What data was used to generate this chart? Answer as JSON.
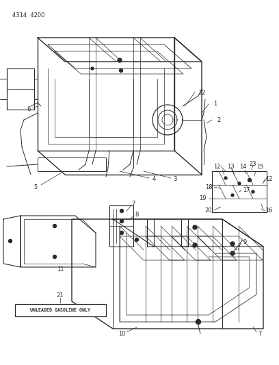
{
  "bg_color": "#ffffff",
  "line_color": "#2a2a2a",
  "title_code": "4314  4200",
  "title_fontsize": 6,
  "label_fontsize": 6,
  "box_label": "UNLEADED GASOLINE ONLY",
  "box_label_number": "21"
}
